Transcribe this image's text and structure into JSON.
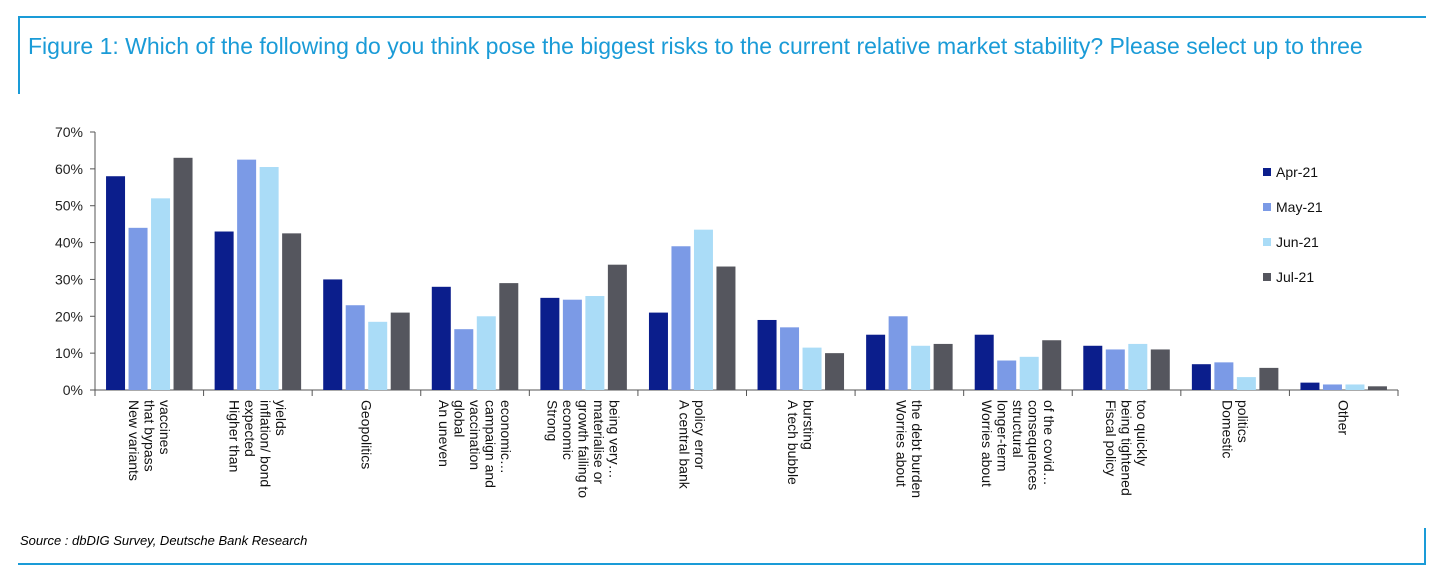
{
  "header": {
    "title": "Figure 1: Which of the following do you think pose the biggest risks to the current relative market stability? Please select up to three"
  },
  "footer": {
    "source": "Source : dbDIG Survey, Deutsche Bank Research"
  },
  "colors": {
    "frame": "#1a9bd7",
    "series": [
      "#0b1e8c",
      "#7b9ae6",
      "#aadcf7",
      "#55565e"
    ]
  },
  "chart_data": {
    "type": "bar",
    "ylim": [
      0,
      70
    ],
    "yticks": [
      "0%",
      "10%",
      "20%",
      "30%",
      "40%",
      "50%",
      "60%",
      "70%"
    ],
    "legend_position": "right",
    "grid": false,
    "categories": [
      [
        "New variants",
        "that bypass",
        "vaccines"
      ],
      [
        "Higher than",
        "expected",
        "inflation/ bond",
        "yields"
      ],
      [
        "Geopolitics"
      ],
      [
        "An uneven",
        "global",
        "vaccination",
        "campaign and",
        "economic…"
      ],
      [
        "Strong",
        "economic",
        "growth failing to",
        "materialise or",
        "being very…"
      ],
      [
        "A central bank",
        "policy error"
      ],
      [
        "A tech bubble",
        "bursting"
      ],
      [
        "Worries about",
        "the debt burden"
      ],
      [
        "Worries about",
        "longer-term",
        "structural",
        "consequences",
        "of the covid…"
      ],
      [
        "Fiscal policy",
        "being tightened",
        "too quickly"
      ],
      [
        "Domestic",
        "politics"
      ],
      [
        "Other"
      ]
    ],
    "series": [
      {
        "name": "Apr-21",
        "values": [
          58,
          43,
          30,
          28,
          25,
          21,
          19,
          15,
          15,
          12,
          7,
          2
        ]
      },
      {
        "name": "May-21",
        "values": [
          44,
          62.5,
          23,
          16.5,
          24.5,
          39,
          17,
          20,
          8,
          11,
          7.5,
          1.5
        ]
      },
      {
        "name": "Jun-21",
        "values": [
          52,
          60.5,
          18.5,
          20,
          25.5,
          43.5,
          11.5,
          12,
          9,
          12.5,
          3.5,
          1.5
        ]
      },
      {
        "name": "Jul-21",
        "values": [
          63,
          42.5,
          21,
          29,
          34,
          33.5,
          10,
          12.5,
          13.5,
          11,
          6,
          1
        ]
      }
    ]
  }
}
